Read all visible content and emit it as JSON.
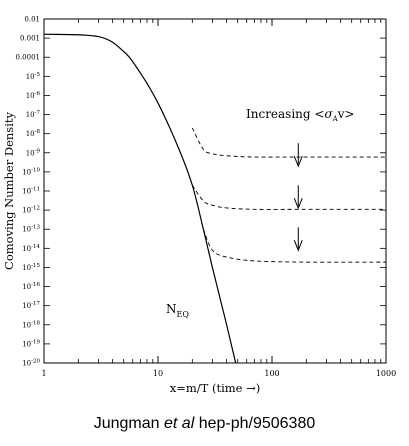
{
  "chart_data": {
    "type": "line",
    "xlabel": "x=m/T (time →)",
    "ylabel": "Comoving Number Density",
    "xscale": "log",
    "yscale": "log",
    "xlim": [
      1,
      1000
    ],
    "ylim": [
      1e-20,
      0.01
    ],
    "x_ticks": [
      {
        "value": 1,
        "label": "1"
      },
      {
        "value": 10,
        "label": "10"
      },
      {
        "value": 100,
        "label": "100"
      },
      {
        "value": 1000,
        "label": "1000"
      }
    ],
    "y_ticks": [
      {
        "exp": -2,
        "label": "0.01"
      },
      {
        "exp": -3,
        "label": "0.001"
      },
      {
        "exp": -4,
        "label": "0.0001"
      },
      {
        "exp": -5,
        "label": "10",
        "sup": "-5"
      },
      {
        "exp": -6,
        "label": "10",
        "sup": "-6"
      },
      {
        "exp": -7,
        "label": "10",
        "sup": "-7"
      },
      {
        "exp": -8,
        "label": "10",
        "sup": "-8"
      },
      {
        "exp": -9,
        "label": "10",
        "sup": "-9"
      },
      {
        "exp": -10,
        "label": "10",
        "sup": "-10"
      },
      {
        "exp": -11,
        "label": "10",
        "sup": "-11"
      },
      {
        "exp": -12,
        "label": "10",
        "sup": "-12"
      },
      {
        "exp": -13,
        "label": "10",
        "sup": "-13"
      },
      {
        "exp": -14,
        "label": "10",
        "sup": "-14"
      },
      {
        "exp": -15,
        "label": "10",
        "sup": "-15"
      },
      {
        "exp": -16,
        "label": "10",
        "sup": "-16"
      },
      {
        "exp": -17,
        "label": "10",
        "sup": "-17"
      },
      {
        "exp": -18,
        "label": "10",
        "sup": "-18"
      },
      {
        "exp": -19,
        "label": "10",
        "sup": "-19"
      },
      {
        "exp": -20,
        "label": "10",
        "sup": "-20"
      }
    ],
    "series": [
      {
        "style": "solid",
        "label": "N",
        "label_sub": "EQ",
        "points": [
          [
            1,
            0.0016
          ],
          [
            3,
            0.0012
          ],
          [
            5,
            0.0002
          ],
          [
            7,
            1.5e-05
          ],
          [
            10,
            4e-07
          ],
          [
            15,
            2e-09
          ],
          [
            20,
            2e-11
          ],
          [
            25,
            1e-13
          ],
          [
            30,
            1e-15
          ],
          [
            40,
            1e-18
          ],
          [
            48,
            1e-20
          ]
        ]
      },
      {
        "style": "dashed",
        "points": [
          [
            20,
            2e-08
          ],
          [
            25,
            1.5e-09
          ],
          [
            30,
            9e-10
          ],
          [
            40,
            7e-10
          ],
          [
            70,
            6e-10
          ],
          [
            200,
            6e-10
          ],
          [
            1000,
            6e-10
          ]
        ]
      },
      {
        "style": "dashed",
        "points": [
          [
            20,
            2e-11
          ],
          [
            25,
            3e-12
          ],
          [
            30,
            1.8e-12
          ],
          [
            40,
            1.3e-12
          ],
          [
            70,
            1.1e-12
          ],
          [
            200,
            1.1e-12
          ],
          [
            1000,
            1.1e-12
          ]
        ]
      },
      {
        "style": "dashed",
        "points": [
          [
            25,
            1e-13
          ],
          [
            30,
            8e-15
          ],
          [
            40,
            3.5e-15
          ],
          [
            70,
            2.2e-15
          ],
          [
            200,
            1.9e-15
          ],
          [
            1000,
            1.9e-15
          ]
        ]
      }
    ],
    "annotation": {
      "text_before": "Increasing <",
      "sigma": "σ",
      "sigma_sub": "A",
      "text_after": "v>",
      "arrow_x": 170,
      "arrows": [
        {
          "from_exp": -8.5,
          "to_exp": -9.7
        },
        {
          "from_exp": -10.7,
          "to_exp": -11.9
        },
        {
          "from_exp": -12.9,
          "to_exp": -14.1
        }
      ]
    }
  },
  "caption": {
    "before": "Jungman ",
    "italic": "et al",
    "after": " hep-ph/9506380"
  }
}
